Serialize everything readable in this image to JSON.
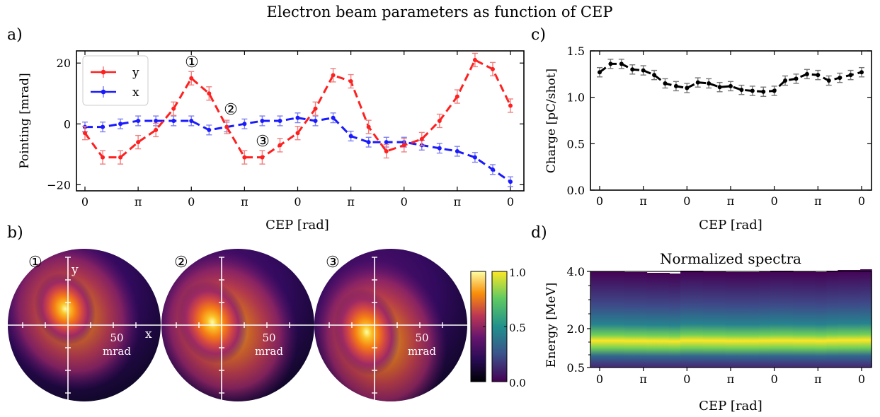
{
  "figure": {
    "title": "Electron beam parameters as function of CEP",
    "panel_labels": [
      "a)",
      "b)",
      "c)",
      "d)"
    ]
  },
  "colors": {
    "y_series": "#ff2020",
    "x_series": "#1a1aff",
    "charge": "#000000"
  },
  "chart_data": [
    {
      "panel": "a",
      "type": "line",
      "xlabel": "CEP [rad]",
      "ylabel": "Pointing [mrad]",
      "xticks": [
        "0",
        "π",
        "0",
        "π",
        "0",
        "π",
        "0",
        "π",
        "0"
      ],
      "ylim": [
        -22,
        24
      ],
      "yticks": [
        "−20",
        "0",
        "20"
      ],
      "legend": {
        "placement": "top-left",
        "entries": [
          "y",
          "x"
        ]
      },
      "markers": [
        "①",
        "②",
        "③"
      ],
      "series": [
        {
          "name": "y",
          "values": [
            -3,
            -11,
            -11,
            -6,
            -2,
            5,
            15,
            10,
            -1,
            -11,
            -11,
            -7,
            -3,
            5,
            16,
            14,
            -1,
            -9,
            -7,
            -5,
            1,
            9,
            21,
            18,
            6
          ]
        },
        {
          "name": "x",
          "values": [
            -1,
            -1,
            0,
            1,
            1,
            1,
            1,
            -2,
            -1,
            0,
            1,
            1,
            2,
            1,
            2,
            -4,
            -6,
            -6,
            -6,
            -7,
            -8,
            -9,
            -11,
            -15,
            -19
          ]
        }
      ]
    },
    {
      "panel": "c",
      "type": "line",
      "xlabel": "CEP [rad]",
      "ylabel": "Charge [pC/shot]",
      "xticks": [
        "0",
        "π",
        "0",
        "π",
        "0",
        "π",
        "0"
      ],
      "ylim": [
        0,
        1.5
      ],
      "yticks": [
        "0.0",
        "0.5",
        "1.0",
        "1.5"
      ],
      "series": [
        {
          "values": [
            1.27,
            1.36,
            1.36,
            1.3,
            1.29,
            1.24,
            1.15,
            1.12,
            1.1,
            1.16,
            1.15,
            1.11,
            1.12,
            1.08,
            1.07,
            1.06,
            1.07,
            1.18,
            1.2,
            1.25,
            1.24,
            1.18,
            1.21,
            1.24,
            1.27
          ]
        }
      ]
    },
    {
      "panel": "d",
      "type": "heatmap",
      "title": "Normalized spectra",
      "xlabel": "CEP [rad]",
      "ylabel": "Energy [MeV]",
      "xticks": [
        "0",
        "π",
        "0",
        "π",
        "0",
        "π",
        "0"
      ],
      "yticks": [
        "0.5",
        "2.0",
        "4.0"
      ]
    },
    {
      "panel": "b",
      "type": "heatmap",
      "beam_labels": [
        "①",
        "②",
        "③"
      ],
      "axis_x": "x",
      "axis_y": "y",
      "scale_value": "50",
      "scale_unit": "mrad",
      "colorbar_ticks": [
        "1.0",
        "0.5",
        "0.0"
      ]
    }
  ]
}
